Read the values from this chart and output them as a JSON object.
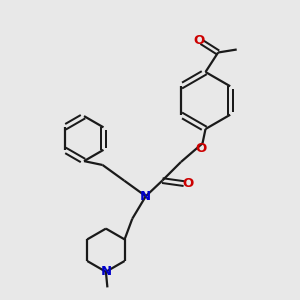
{
  "bg_color": "#e8e8e8",
  "bond_color": "#1a1a1a",
  "N_color": "#0000cc",
  "O_color": "#cc0000",
  "line_width": 1.6,
  "font_size": 8.5,
  "fig_size": [
    3.0,
    3.0
  ],
  "dpi": 100,
  "xlim": [
    0,
    10
  ],
  "ylim": [
    0,
    10
  ]
}
